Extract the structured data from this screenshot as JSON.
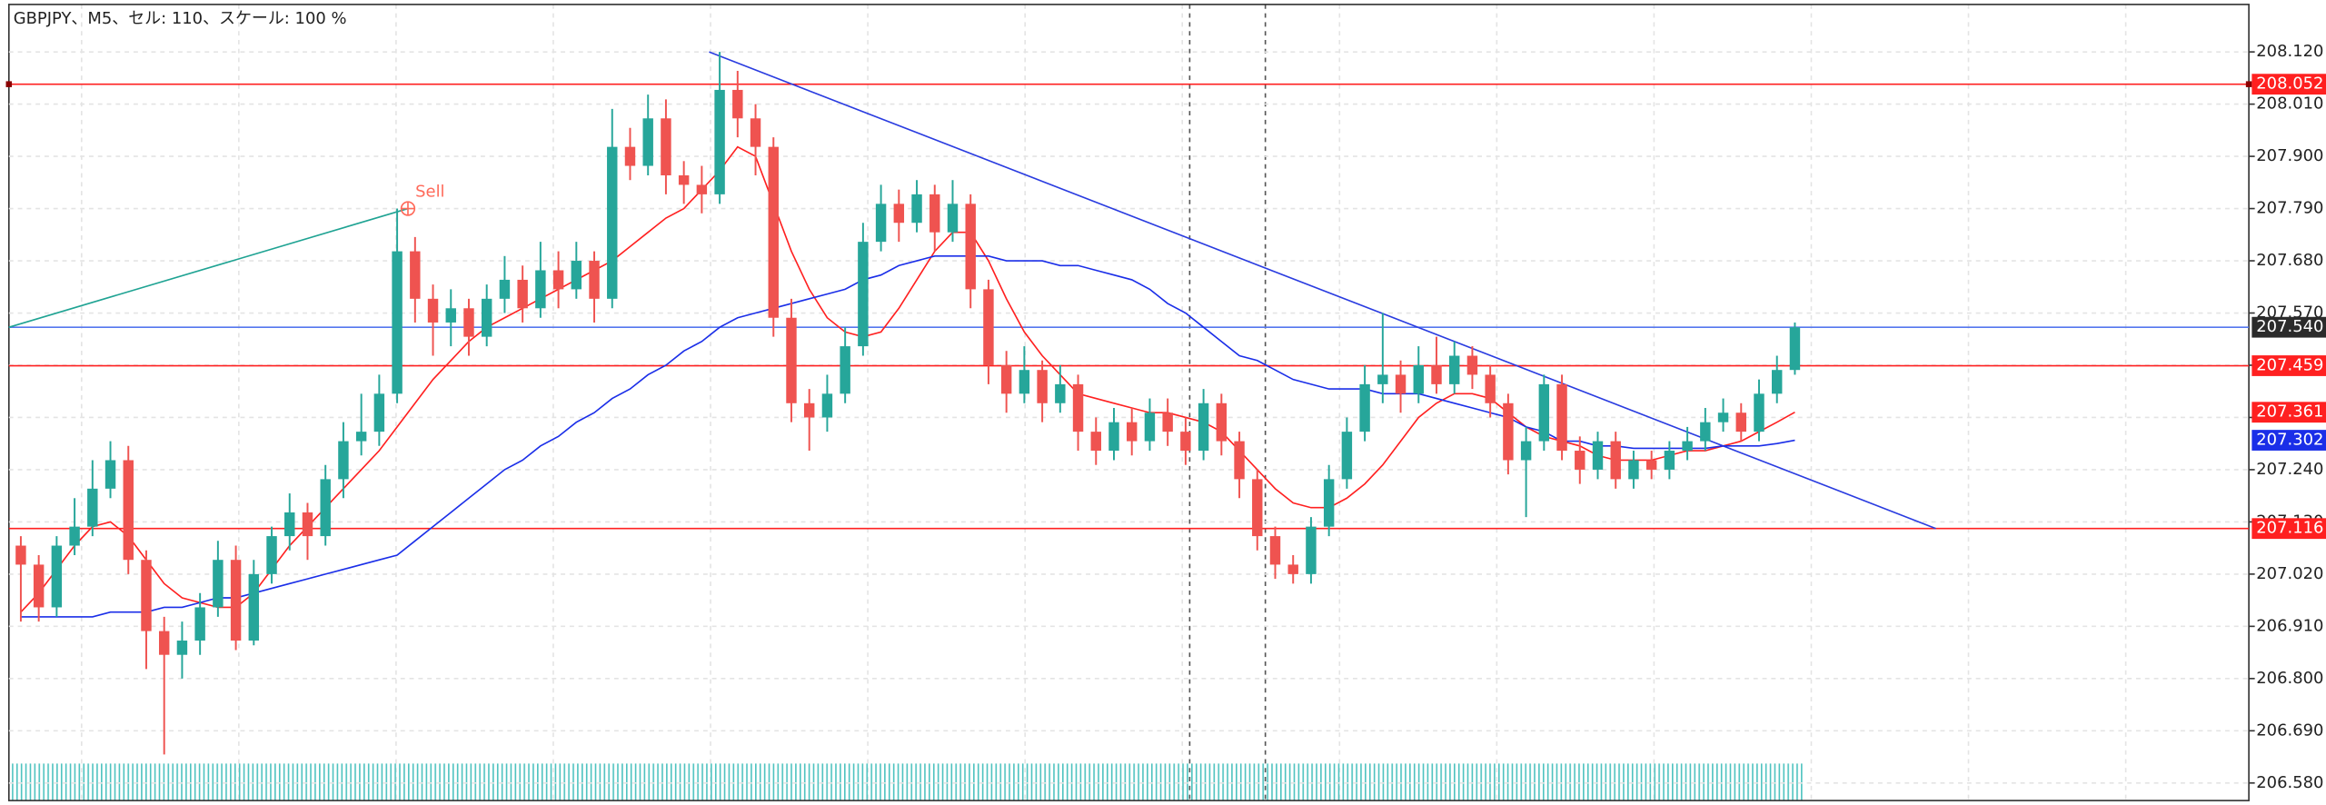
{
  "chart_data": {
    "type": "candlestick",
    "title": "GBPJPY、M5、セル: 110、スケール: 100 %",
    "colors": {
      "up": "#26a69a",
      "down": "#ef5350"
    },
    "ylim": [
      206.543,
      208.22
    ],
    "yticks": [
      {
        "value": 208.12,
        "label": "208.120"
      },
      {
        "value": 208.01,
        "label": "208.010"
      },
      {
        "value": 207.9,
        "label": "207.900"
      },
      {
        "value": 207.79,
        "label": "207.790"
      },
      {
        "value": 207.68,
        "label": "207.680"
      },
      {
        "value": 207.57,
        "label": "207.570"
      },
      {
        "value": 207.46,
        "label": "207.460"
      },
      {
        "value": 207.35,
        "label": "207.350"
      },
      {
        "value": 207.24,
        "label": "207.240"
      },
      {
        "value": 207.13,
        "label": "207.130"
      },
      {
        "value": 207.02,
        "label": "207.020"
      },
      {
        "value": 206.91,
        "label": "206.910"
      },
      {
        "value": 206.8,
        "label": "206.800"
      },
      {
        "value": 206.69,
        "label": "206.690"
      },
      {
        "value": 206.58,
        "label": "206.580"
      }
    ],
    "grid": true,
    "ohlc": [
      [
        207.08,
        207.1,
        206.92,
        207.04
      ],
      [
        207.04,
        207.06,
        206.92,
        206.95
      ],
      [
        206.95,
        207.1,
        206.93,
        207.08
      ],
      [
        207.08,
        207.18,
        207.06,
        207.12
      ],
      [
        207.12,
        207.26,
        207.1,
        207.2
      ],
      [
        207.2,
        207.3,
        207.18,
        207.26
      ],
      [
        207.26,
        207.29,
        207.02,
        207.05
      ],
      [
        207.05,
        207.07,
        206.82,
        206.9
      ],
      [
        206.9,
        206.93,
        206.64,
        206.85
      ],
      [
        206.85,
        206.92,
        206.8,
        206.88
      ],
      [
        206.88,
        206.98,
        206.85,
        206.95
      ],
      [
        206.95,
        207.09,
        206.93,
        207.05
      ],
      [
        207.05,
        207.08,
        206.86,
        206.88
      ],
      [
        206.88,
        207.05,
        206.87,
        207.02
      ],
      [
        207.02,
        207.12,
        207.0,
        207.1
      ],
      [
        207.1,
        207.19,
        207.07,
        207.15
      ],
      [
        207.15,
        207.17,
        207.05,
        207.1
      ],
      [
        207.1,
        207.25,
        207.08,
        207.22
      ],
      [
        207.22,
        207.34,
        207.18,
        207.3
      ],
      [
        207.3,
        207.4,
        207.27,
        207.32
      ],
      [
        207.32,
        207.44,
        207.29,
        207.4
      ],
      [
        207.4,
        207.79,
        207.38,
        207.7
      ],
      [
        207.7,
        207.73,
        207.55,
        207.6
      ],
      [
        207.6,
        207.63,
        207.48,
        207.55
      ],
      [
        207.55,
        207.62,
        207.5,
        207.58
      ],
      [
        207.58,
        207.6,
        207.48,
        207.52
      ],
      [
        207.52,
        207.63,
        207.5,
        207.6
      ],
      [
        207.6,
        207.69,
        207.57,
        207.64
      ],
      [
        207.64,
        207.67,
        207.55,
        207.58
      ],
      [
        207.58,
        207.72,
        207.56,
        207.66
      ],
      [
        207.66,
        207.7,
        207.58,
        207.62
      ],
      [
        207.62,
        207.72,
        207.6,
        207.68
      ],
      [
        207.68,
        207.7,
        207.55,
        207.6
      ],
      [
        207.6,
        208.0,
        207.58,
        207.92
      ],
      [
        207.92,
        207.96,
        207.85,
        207.88
      ],
      [
        207.88,
        208.03,
        207.86,
        207.98
      ],
      [
        207.98,
        208.02,
        207.82,
        207.86
      ],
      [
        207.86,
        207.89,
        207.8,
        207.84
      ],
      [
        207.84,
        207.88,
        207.78,
        207.82
      ],
      [
        207.82,
        208.12,
        207.8,
        208.04
      ],
      [
        208.04,
        208.08,
        207.94,
        207.98
      ],
      [
        207.98,
        208.01,
        207.86,
        207.92
      ],
      [
        207.92,
        207.94,
        207.52,
        207.56
      ],
      [
        207.56,
        207.6,
        207.34,
        207.38
      ],
      [
        207.38,
        207.41,
        207.28,
        207.35
      ],
      [
        207.35,
        207.44,
        207.32,
        207.4
      ],
      [
        207.4,
        207.54,
        207.38,
        207.5
      ],
      [
        207.5,
        207.76,
        207.48,
        207.72
      ],
      [
        207.72,
        207.84,
        207.7,
        207.8
      ],
      [
        207.8,
        207.83,
        207.72,
        207.76
      ],
      [
        207.76,
        207.85,
        207.74,
        207.82
      ],
      [
        207.82,
        207.84,
        207.7,
        207.74
      ],
      [
        207.74,
        207.85,
        207.72,
        207.8
      ],
      [
        207.8,
        207.82,
        207.58,
        207.62
      ],
      [
        207.62,
        207.64,
        207.42,
        207.46
      ],
      [
        207.46,
        207.49,
        207.36,
        207.4
      ],
      [
        207.4,
        207.5,
        207.38,
        207.45
      ],
      [
        207.45,
        207.47,
        207.34,
        207.38
      ],
      [
        207.38,
        207.46,
        207.36,
        207.42
      ],
      [
        207.42,
        207.44,
        207.28,
        207.32
      ],
      [
        207.32,
        207.35,
        207.25,
        207.28
      ],
      [
        207.28,
        207.37,
        207.26,
        207.34
      ],
      [
        207.34,
        207.37,
        207.27,
        207.3
      ],
      [
        207.3,
        207.39,
        207.28,
        207.36
      ],
      [
        207.36,
        207.39,
        207.29,
        207.32
      ],
      [
        207.32,
        207.35,
        207.25,
        207.28
      ],
      [
        207.28,
        207.41,
        207.26,
        207.38
      ],
      [
        207.38,
        207.4,
        207.27,
        207.3
      ],
      [
        207.3,
        207.32,
        207.18,
        207.22
      ],
      [
        207.22,
        207.24,
        207.07,
        207.1
      ],
      [
        207.1,
        207.12,
        207.01,
        207.04
      ],
      [
        207.04,
        207.06,
        207.0,
        207.02
      ],
      [
        207.02,
        207.14,
        207.0,
        207.12
      ],
      [
        207.12,
        207.25,
        207.1,
        207.22
      ],
      [
        207.22,
        207.35,
        207.2,
        207.32
      ],
      [
        207.32,
        207.46,
        207.3,
        207.42
      ],
      [
        207.42,
        207.57,
        207.38,
        207.44
      ],
      [
        207.44,
        207.47,
        207.36,
        207.4
      ],
      [
        207.4,
        207.5,
        207.38,
        207.46
      ],
      [
        207.46,
        207.52,
        207.4,
        207.42
      ],
      [
        207.42,
        207.51,
        207.4,
        207.48
      ],
      [
        207.48,
        207.5,
        207.41,
        207.44
      ],
      [
        207.44,
        207.46,
        207.35,
        207.38
      ],
      [
        207.38,
        207.4,
        207.23,
        207.26
      ],
      [
        207.26,
        207.33,
        207.14,
        207.3
      ],
      [
        207.3,
        207.44,
        207.28,
        207.42
      ],
      [
        207.42,
        207.44,
        207.26,
        207.28
      ],
      [
        207.28,
        207.31,
        207.21,
        207.24
      ],
      [
        207.24,
        207.32,
        207.22,
        207.3
      ],
      [
        207.3,
        207.32,
        207.2,
        207.22
      ],
      [
        207.22,
        207.28,
        207.2,
        207.26
      ],
      [
        207.26,
        207.28,
        207.22,
        207.24
      ],
      [
        207.24,
        207.3,
        207.22,
        207.28
      ],
      [
        207.28,
        207.33,
        207.26,
        207.3
      ],
      [
        207.3,
        207.37,
        207.28,
        207.34
      ],
      [
        207.34,
        207.39,
        207.32,
        207.36
      ],
      [
        207.36,
        207.38,
        207.3,
        207.32
      ],
      [
        207.32,
        207.43,
        207.3,
        207.4
      ],
      [
        207.4,
        207.48,
        207.38,
        207.45
      ],
      [
        207.45,
        207.55,
        207.44,
        207.54
      ]
    ],
    "series": [
      {
        "color": "#ff2020",
        "last_label": "207.361",
        "values": [
          206.94,
          206.98,
          207.03,
          207.08,
          207.12,
          207.13,
          207.1,
          207.05,
          207.0,
          206.97,
          206.96,
          206.95,
          206.95,
          206.98,
          207.03,
          207.08,
          207.12,
          207.16,
          207.2,
          207.24,
          207.28,
          207.33,
          207.38,
          207.43,
          207.47,
          207.51,
          207.54,
          207.56,
          207.58,
          207.6,
          207.62,
          207.64,
          207.66,
          207.68,
          207.71,
          207.74,
          207.77,
          207.79,
          207.83,
          207.87,
          207.92,
          207.9,
          207.8,
          207.7,
          207.62,
          207.56,
          207.53,
          207.52,
          207.53,
          207.58,
          207.64,
          207.7,
          207.74,
          207.74,
          207.68,
          207.6,
          207.53,
          207.48,
          207.44,
          207.4,
          207.39,
          207.38,
          207.37,
          207.36,
          207.36,
          207.35,
          207.34,
          207.32,
          207.28,
          207.24,
          207.2,
          207.17,
          207.16,
          207.16,
          207.18,
          207.21,
          207.25,
          207.3,
          207.35,
          207.38,
          207.4,
          207.4,
          207.39,
          207.36,
          207.33,
          207.31,
          207.3,
          207.29,
          207.27,
          207.26,
          207.26,
          207.26,
          207.27,
          207.28,
          207.28,
          207.29,
          207.3,
          207.32,
          207.34,
          207.361
        ]
      },
      {
        "color": "#1a2ee8",
        "last_label": "207.302",
        "values": [
          206.93,
          206.93,
          206.93,
          206.93,
          206.93,
          206.94,
          206.94,
          206.94,
          206.95,
          206.95,
          206.96,
          206.97,
          206.97,
          206.98,
          206.99,
          207.0,
          207.01,
          207.02,
          207.03,
          207.04,
          207.05,
          207.06,
          207.09,
          207.12,
          207.15,
          207.18,
          207.21,
          207.24,
          207.26,
          207.29,
          207.31,
          207.34,
          207.36,
          207.39,
          207.41,
          207.44,
          207.46,
          207.49,
          207.51,
          207.54,
          207.56,
          207.57,
          207.58,
          207.59,
          207.6,
          207.61,
          207.62,
          207.64,
          207.65,
          207.67,
          207.68,
          207.69,
          207.69,
          207.69,
          207.69,
          207.68,
          207.68,
          207.68,
          207.67,
          207.67,
          207.66,
          207.65,
          207.64,
          207.62,
          207.59,
          207.57,
          207.54,
          207.51,
          207.48,
          207.47,
          207.45,
          207.43,
          207.42,
          207.41,
          207.41,
          207.41,
          207.4,
          207.4,
          207.4,
          207.39,
          207.38,
          207.37,
          207.36,
          207.35,
          207.33,
          207.32,
          207.3,
          207.3,
          207.29,
          207.29,
          207.285,
          207.285,
          207.285,
          207.285,
          207.285,
          207.29,
          207.29,
          207.29,
          207.295,
          207.302
        ]
      }
    ],
    "hlines": [
      {
        "value": 208.052,
        "label": "208.052",
        "color": "#ff2020",
        "box": "#ff2020"
      },
      {
        "value": 207.54,
        "label": "207.540",
        "color": "#5577ee",
        "box": "#2b2b2b"
      },
      {
        "value": 207.459,
        "label": "207.459",
        "color": "#ff2020",
        "box": "#ff2020"
      },
      {
        "value": 207.116,
        "label": "207.116",
        "color": "#ff2020",
        "box": "#ff2020"
      }
    ],
    "trendlines": [
      {
        "color": "#2a3ce0",
        "start": 208.12,
        "end": 207.116
      },
      {
        "color": "#1fa393",
        "start": 207.54,
        "end": 207.79
      }
    ],
    "signal": {
      "text": "Sell",
      "color": "#ff6a5a"
    }
  }
}
